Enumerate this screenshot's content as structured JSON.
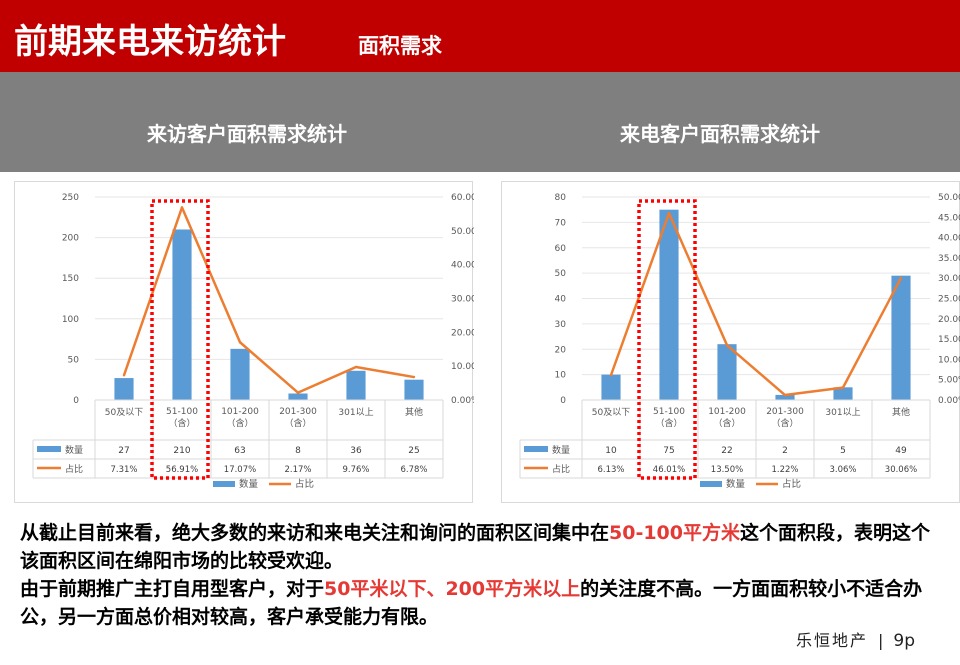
{
  "header": {
    "title": "前期来电来访统计",
    "subtitle": "面积需求"
  },
  "panels": {
    "left_title": "来访客户面积需求统计",
    "right_title": "来电客户面积需求统计"
  },
  "chart_data": [
    {
      "type": "bar",
      "categories": [
        "50及以下",
        "51-100\n（含）",
        "101-200\n（含）",
        "201-300\n（含）",
        "301以上",
        "其他"
      ],
      "series": [
        {
          "name": "数量",
          "type": "bar",
          "axis": "left",
          "values": [
            27,
            210,
            63,
            8,
            36,
            25
          ],
          "labels": [
            "27",
            "210",
            "63",
            "8",
            "36",
            "25"
          ],
          "color": "#5b9bd5"
        },
        {
          "name": "占比",
          "type": "line",
          "axis": "right",
          "values": [
            7.31,
            56.91,
            17.07,
            2.17,
            9.76,
            6.78
          ],
          "labels": [
            "7.31%",
            "56.91%",
            "17.07%",
            "2.17%",
            "9.76%",
            "6.78%"
          ],
          "color": "#ed7d31"
        }
      ],
      "y_left": {
        "min": 0,
        "max": 250,
        "ticks": [
          "0",
          "50",
          "100",
          "150",
          "200",
          "250"
        ]
      },
      "y_right": {
        "min": 0,
        "max": 60,
        "ticks": [
          "0.00%",
          "10.00%",
          "20.00%",
          "30.00%",
          "40.00%",
          "50.00%",
          "60.00%"
        ]
      },
      "highlight_index": 1,
      "legend": [
        "数量",
        "占比"
      ],
      "legend_position": "bottom"
    },
    {
      "type": "bar",
      "categories": [
        "50及以下",
        "51-100\n（含）",
        "101-200\n（含）",
        "201-300\n（含）",
        "301以上",
        "其他"
      ],
      "series": [
        {
          "name": "数量",
          "type": "bar",
          "axis": "left",
          "values": [
            10,
            75,
            22,
            2,
            5,
            49
          ],
          "labels": [
            "10",
            "75",
            "22",
            "2",
            "5",
            "49"
          ],
          "color": "#5b9bd5"
        },
        {
          "name": "占比",
          "type": "line",
          "axis": "right",
          "values": [
            6.13,
            46.01,
            13.5,
            1.22,
            3.06,
            30.06
          ],
          "labels": [
            "6.13%",
            "46.01%",
            "13.50%",
            "1.22%",
            "3.06%",
            "30.06%"
          ],
          "color": "#ed7d31"
        }
      ],
      "y_left": {
        "min": 0,
        "max": 80,
        "ticks": [
          "0",
          "10",
          "20",
          "30",
          "40",
          "50",
          "60",
          "70",
          "80"
        ]
      },
      "y_right": {
        "min": 0,
        "max": 50,
        "ticks": [
          "0.00%",
          "5.00%",
          "10.00%",
          "15.00%",
          "20.00%",
          "25.00%",
          "30.00%",
          "35.00%",
          "40.00%",
          "45.00%",
          "50.00%"
        ]
      },
      "highlight_index": 1,
      "legend": [
        "数量",
        "占比"
      ],
      "legend_position": "bottom"
    }
  ],
  "text": {
    "para1_a": "从截止目前来看，绝大多数的来访和来电关注和询问的面积区间集中在",
    "para1_hl": "50-100平方米",
    "para1_b": "这个面积段，表明这个该面积区间在绵阳市场的比较受欢迎。",
    "para2_a": "由于前期推广主打自用型客户，对于",
    "para2_hl": "50平米以下、200平方米以上",
    "para2_b": "的关注度不高。一方面面积较小不适合办公，另一方面总价相对较高，客户承受能力有限。"
  },
  "footer": {
    "brand": "乐恒地产",
    "separator": "|",
    "page": "9p"
  },
  "colors": {
    "header_red": "#c00000",
    "band_grey": "#7f7f7f",
    "highlight_red": "#e53935",
    "bar_blue": "#5b9bd5",
    "line_orange": "#ed7d31"
  }
}
